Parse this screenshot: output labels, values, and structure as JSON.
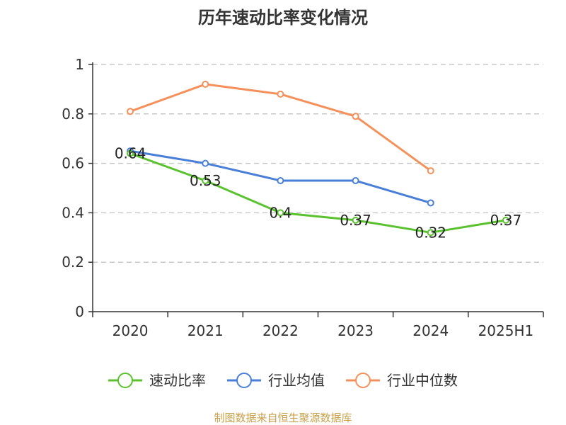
{
  "chart_data": {
    "type": "line",
    "title": "历年速动比率变化情况",
    "categories": [
      "2020",
      "2021",
      "2022",
      "2023",
      "2024",
      "2025H1"
    ],
    "ylim": [
      0,
      1
    ],
    "yticks": [
      0,
      0.2,
      0.4,
      0.6,
      0.8,
      1
    ],
    "ytick_labels": [
      "0",
      "0.2",
      "0.4",
      "0.6",
      "0.8",
      "1"
    ],
    "grid": true,
    "legend_position": "bottom",
    "series": [
      {
        "name": "速动比率",
        "color": "#5ac22e",
        "values": [
          0.64,
          0.53,
          0.4,
          0.37,
          0.32,
          0.37
        ],
        "labels": [
          "0.64",
          "0.53",
          "0.4",
          "0.37",
          "0.32",
          "0.37"
        ]
      },
      {
        "name": "行业均值",
        "color": "#4a7fd8",
        "values": [
          0.65,
          0.6,
          0.53,
          0.53,
          0.44,
          null
        ]
      },
      {
        "name": "行业中位数",
        "color": "#f5905a",
        "values": [
          0.81,
          0.92,
          0.88,
          0.79,
          0.57,
          null
        ]
      }
    ]
  },
  "source_text": "制图数据来自恒生聚源数据库"
}
